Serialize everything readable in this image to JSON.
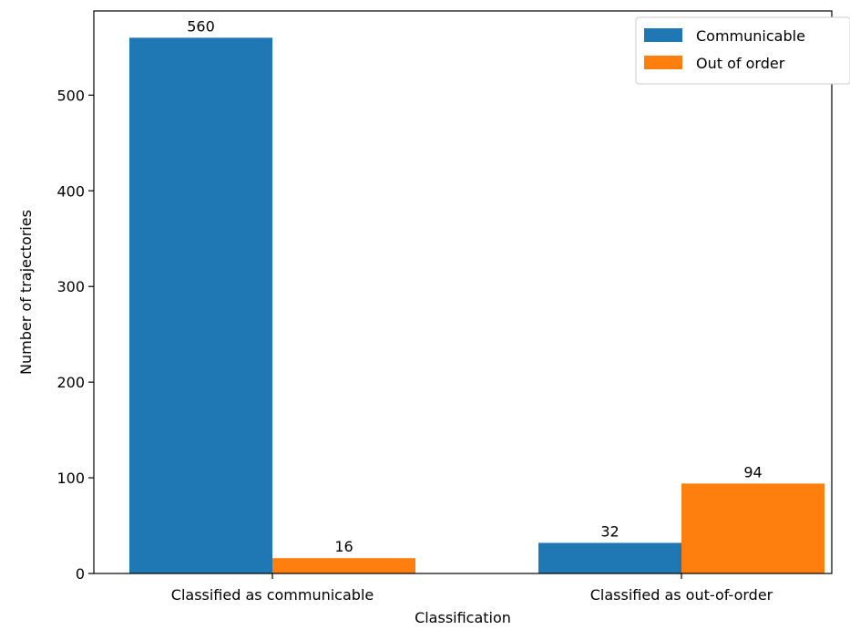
{
  "chart_data": {
    "type": "bar",
    "xlabel": "Classification",
    "ylabel": "Number of trajectories",
    "categories": [
      "Classified as communicable",
      "Classified as out-of-order"
    ],
    "series": [
      {
        "name": "Communicable",
        "values": [
          560,
          32
        ],
        "color": "#1f77b4"
      },
      {
        "name": "Out of order",
        "values": [
          16,
          94
        ],
        "color": "#ff7f0e"
      }
    ],
    "ylim": [
      0,
      588
    ],
    "yticks": [
      0,
      100,
      200,
      300,
      400,
      500
    ],
    "grid": false,
    "legend_position": "top-right"
  }
}
